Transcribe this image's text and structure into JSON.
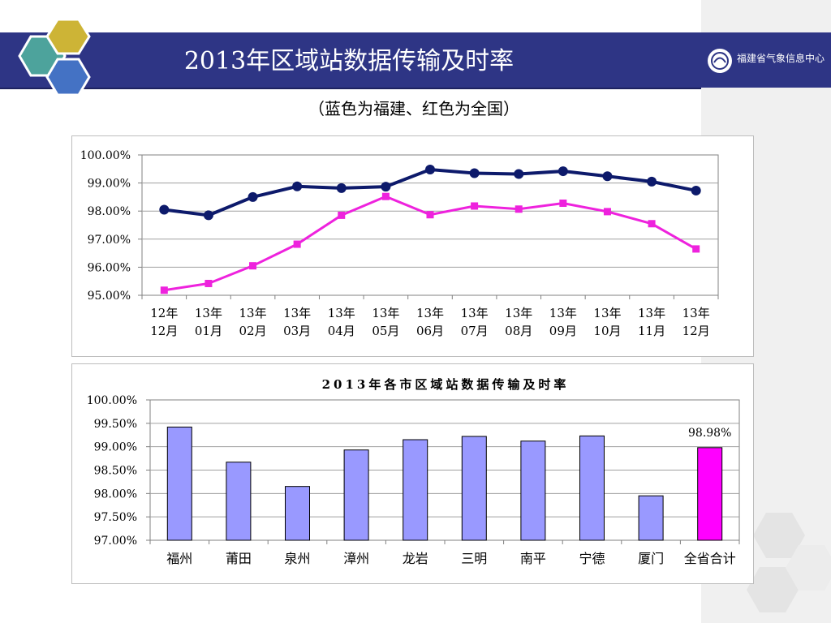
{
  "header": {
    "title": "2013年区域站数据传输及时率",
    "subtitle": "（蓝色为福建、红色为全国）",
    "logo_text": "福建省气象信息中心"
  },
  "colors": {
    "header_bar": "#2e3585",
    "fujian_line": "#0d1a6b",
    "national_line": "#ee22dd",
    "bar_fill": "#9999ff",
    "total_bar_fill": "#ff00ff",
    "hex_teal": "#4da39c",
    "hex_gold": "#cdb436",
    "hex_blue": "#4472c4"
  },
  "chart_data": [
    {
      "type": "line",
      "title": "",
      "categories": [
        [
          "12年",
          "12月"
        ],
        [
          "13年",
          "01月"
        ],
        [
          "13年",
          "02月"
        ],
        [
          "13年",
          "03月"
        ],
        [
          "13年",
          "04月"
        ],
        [
          "13年",
          "05月"
        ],
        [
          "13年",
          "06月"
        ],
        [
          "13年",
          "07月"
        ],
        [
          "13年",
          "08月"
        ],
        [
          "13年",
          "09月"
        ],
        [
          "13年",
          "10月"
        ],
        [
          "13年",
          "11月"
        ],
        [
          "13年",
          "12月"
        ]
      ],
      "series": [
        {
          "color": "#0d1a6b",
          "marker": "circle",
          "values": [
            98.05,
            97.85,
            98.5,
            98.88,
            98.82,
            98.87,
            99.48,
            99.35,
            99.32,
            99.42,
            99.24,
            99.05,
            98.73
          ]
        },
        {
          "color": "#ee22dd",
          "marker": "square",
          "values": [
            95.18,
            95.42,
            96.05,
            96.82,
            97.85,
            98.52,
            97.87,
            98.18,
            98.07,
            98.28,
            97.98,
            97.55,
            96.65
          ]
        }
      ],
      "ylim": [
        95,
        100
      ],
      "yticks": [
        "100.00%",
        "99.00%",
        "98.00%",
        "97.00%",
        "96.00%",
        "95.00%"
      ],
      "grid": true,
      "legend": "none"
    },
    {
      "type": "bar",
      "title": "2013年各市区域站数据传输及时率",
      "categories": [
        "福州",
        "莆田",
        "泉州",
        "漳州",
        "龙岩",
        "三明",
        "南平",
        "宁德",
        "厦门",
        "全省合计"
      ],
      "values": [
        99.42,
        98.67,
        98.15,
        98.93,
        99.15,
        99.22,
        99.12,
        99.23,
        97.95,
        98.98
      ],
      "data_labels": {
        "9": "98.98%"
      },
      "ylim": [
        97,
        100
      ],
      "yticks": [
        "100.00%",
        "99.50%",
        "99.00%",
        "98.50%",
        "98.00%",
        "97.50%",
        "97.00%"
      ],
      "grid": true,
      "legend": "none"
    }
  ]
}
